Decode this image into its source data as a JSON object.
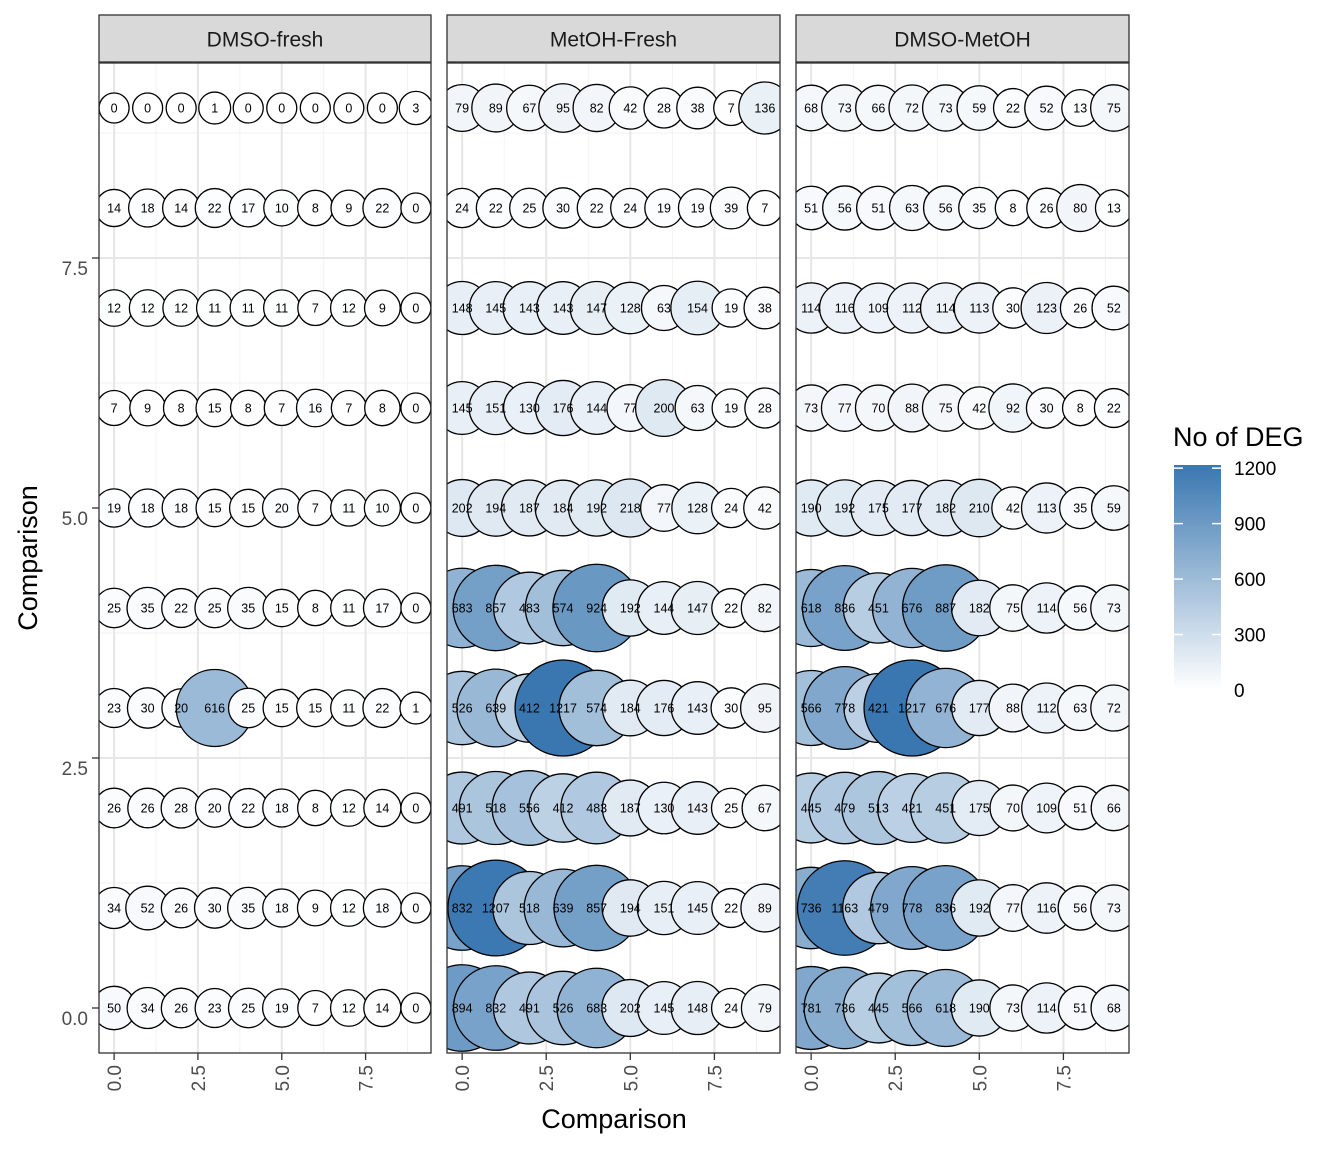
{
  "chart_data": {
    "type": "scatter",
    "subtype": "bubble-facet",
    "xlabel": "Comparison",
    "ylabel": "Comparison",
    "x": [
      0,
      1,
      2,
      3,
      4,
      5,
      6,
      7,
      8,
      9
    ],
    "y": [
      0,
      1,
      2,
      3,
      4,
      5,
      6,
      7,
      8,
      9
    ],
    "xlim": [
      -0.45,
      9.45
    ],
    "ylim": [
      -0.45,
      9.45
    ],
    "x_ticks": [
      0.0,
      2.5,
      5.0,
      7.5
    ],
    "x_tick_labels": [
      "0.0",
      "2.5",
      "5.0",
      "7.5"
    ],
    "y_ticks": [
      0.0,
      2.5,
      5.0,
      7.5
    ],
    "y_tick_labels": [
      "0.0",
      "2.5",
      "5.0",
      "7.5"
    ],
    "grid": true,
    "legend": {
      "title": "No of DEG",
      "placement": "right",
      "breaks": [
        0,
        300,
        600,
        900,
        1200
      ],
      "break_labels": [
        "0",
        "300",
        "600",
        "900",
        "1200"
      ],
      "color_low": "#ffffff",
      "color_high": "#3a77b0",
      "limit": [
        0,
        1217
      ]
    },
    "facets": [
      {
        "name": "DMSO-fresh",
        "values": [
          [
            50,
            34,
            26,
            23,
            25,
            19,
            7,
            12,
            14,
            0
          ],
          [
            34,
            52,
            26,
            30,
            35,
            18,
            9,
            12,
            18,
            0
          ],
          [
            26,
            26,
            28,
            20,
            22,
            18,
            8,
            12,
            14,
            0
          ],
          [
            23,
            30,
            20,
            616,
            25,
            15,
            15,
            11,
            22,
            1
          ],
          [
            25,
            35,
            22,
            25,
            35,
            15,
            8,
            11,
            17,
            0
          ],
          [
            19,
            18,
            18,
            15,
            15,
            20,
            7,
            11,
            10,
            0
          ],
          [
            7,
            9,
            8,
            15,
            8,
            7,
            16,
            7,
            8,
            0
          ],
          [
            12,
            12,
            12,
            11,
            11,
            11,
            7,
            12,
            9,
            0
          ],
          [
            14,
            18,
            14,
            22,
            17,
            10,
            8,
            9,
            22,
            0
          ],
          [
            0,
            0,
            0,
            1,
            0,
            0,
            0,
            0,
            0,
            3
          ]
        ]
      },
      {
        "name": "MetOH-Fresh",
        "values": [
          [
            894,
            832,
            491,
            526,
            683,
            202,
            145,
            148,
            24,
            79
          ],
          [
            832,
            1207,
            518,
            639,
            857,
            194,
            151,
            145,
            22,
            89
          ],
          [
            491,
            518,
            556,
            412,
            483,
            187,
            130,
            143,
            25,
            67
          ],
          [
            526,
            639,
            412,
            1217,
            574,
            184,
            176,
            143,
            30,
            95
          ],
          [
            683,
            857,
            483,
            574,
            924,
            192,
            144,
            147,
            22,
            82
          ],
          [
            202,
            194,
            187,
            184,
            192,
            218,
            77,
            128,
            24,
            42
          ],
          [
            145,
            151,
            130,
            176,
            144,
            77,
            200,
            63,
            19,
            28
          ],
          [
            148,
            145,
            143,
            143,
            147,
            128,
            63,
            154,
            19,
            38
          ],
          [
            24,
            22,
            25,
            30,
            22,
            24,
            19,
            19,
            39,
            7
          ],
          [
            79,
            89,
            67,
            95,
            82,
            42,
            28,
            38,
            7,
            136
          ]
        ]
      },
      {
        "name": "DMSO-MetOH",
        "values": [
          [
            781,
            736,
            445,
            566,
            618,
            190,
            73,
            114,
            51,
            68
          ],
          [
            736,
            1163,
            479,
            778,
            836,
            192,
            77,
            116,
            56,
            73
          ],
          [
            445,
            479,
            513,
            421,
            451,
            175,
            70,
            109,
            51,
            66
          ],
          [
            566,
            778,
            421,
            1217,
            676,
            177,
            88,
            112,
            63,
            72
          ],
          [
            618,
            836,
            451,
            676,
            887,
            182,
            75,
            114,
            56,
            73
          ],
          [
            190,
            192,
            175,
            177,
            182,
            210,
            42,
            113,
            35,
            59
          ],
          [
            73,
            77,
            70,
            88,
            75,
            42,
            92,
            30,
            8,
            22
          ],
          [
            114,
            116,
            109,
            112,
            114,
            113,
            30,
            123,
            26,
            52
          ],
          [
            51,
            56,
            51,
            63,
            56,
            35,
            8,
            26,
            80,
            13
          ],
          [
            68,
            73,
            66,
            72,
            73,
            59,
            22,
            52,
            13,
            75
          ]
        ]
      }
    ]
  }
}
